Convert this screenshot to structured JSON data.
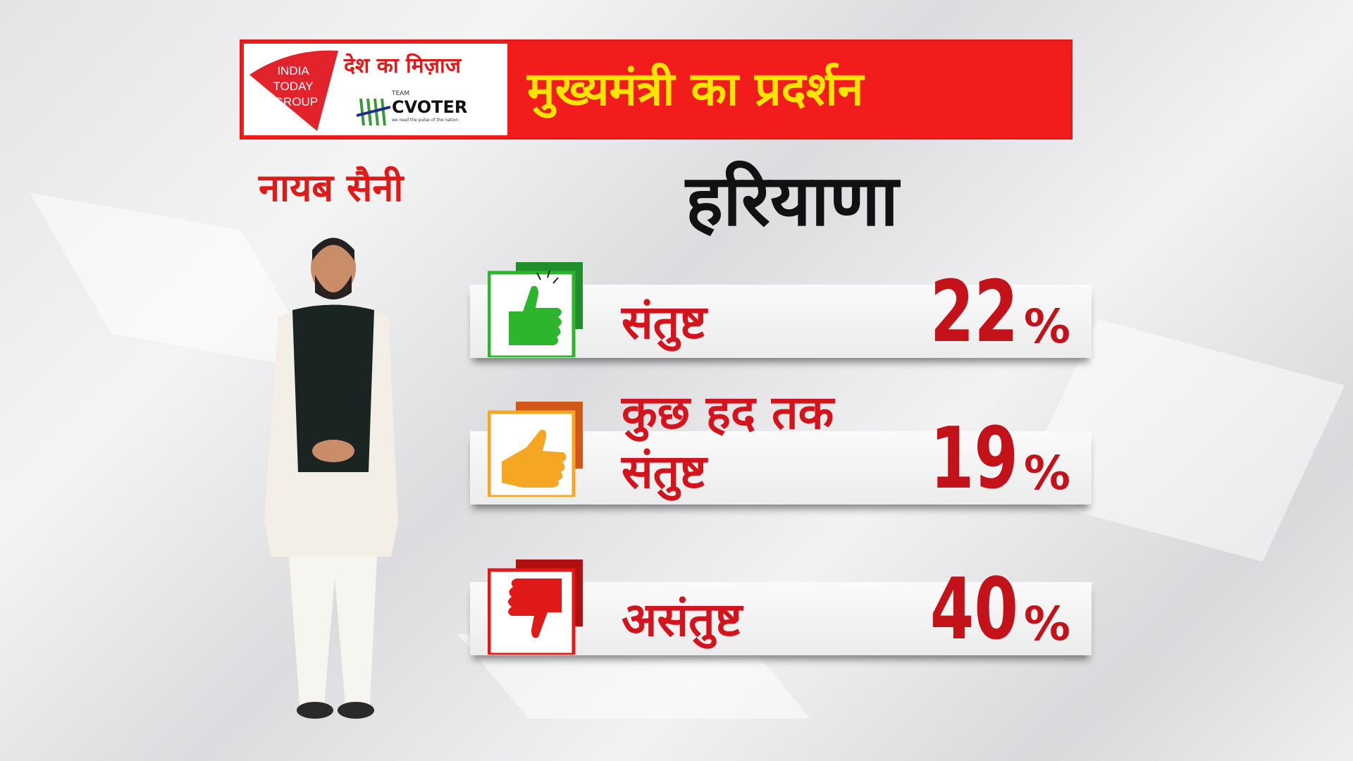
{
  "header": {
    "logo_text": "INDIA TODAY GROUP",
    "show_name": "देश का मिज़ाज",
    "partner_top": "TEAM",
    "partner": "CVOTER",
    "partner_tagline": "we read the pulse of the nation",
    "title": "मुख्यमंत्री का प्रदर्शन"
  },
  "person": {
    "name": "नायब सैनी"
  },
  "state": "हरियाणा",
  "colors": {
    "header_red": "#f21c1c",
    "title_yellow": "#ffe400",
    "text_red": "#d4141c",
    "satisfied": "#2db52d",
    "somewhat": "#f5a623",
    "dissatisfied": "#e01919"
  },
  "chart_data": {
    "type": "table",
    "rows": [
      {
        "label": "संतुष्ट",
        "value": 22,
        "value_text": "22",
        "unit": "%",
        "icon": "thumbs-up-icon"
      },
      {
        "label_line1": "कुछ हद तक",
        "label_line2": "संतुष्ट",
        "value": 19,
        "value_text": "19",
        "unit": "%",
        "icon": "thumbs-sideways-icon"
      },
      {
        "label": "असंतुष्ट",
        "value": 40,
        "value_text": "40",
        "unit": "%",
        "icon": "thumbs-down-icon"
      }
    ]
  }
}
